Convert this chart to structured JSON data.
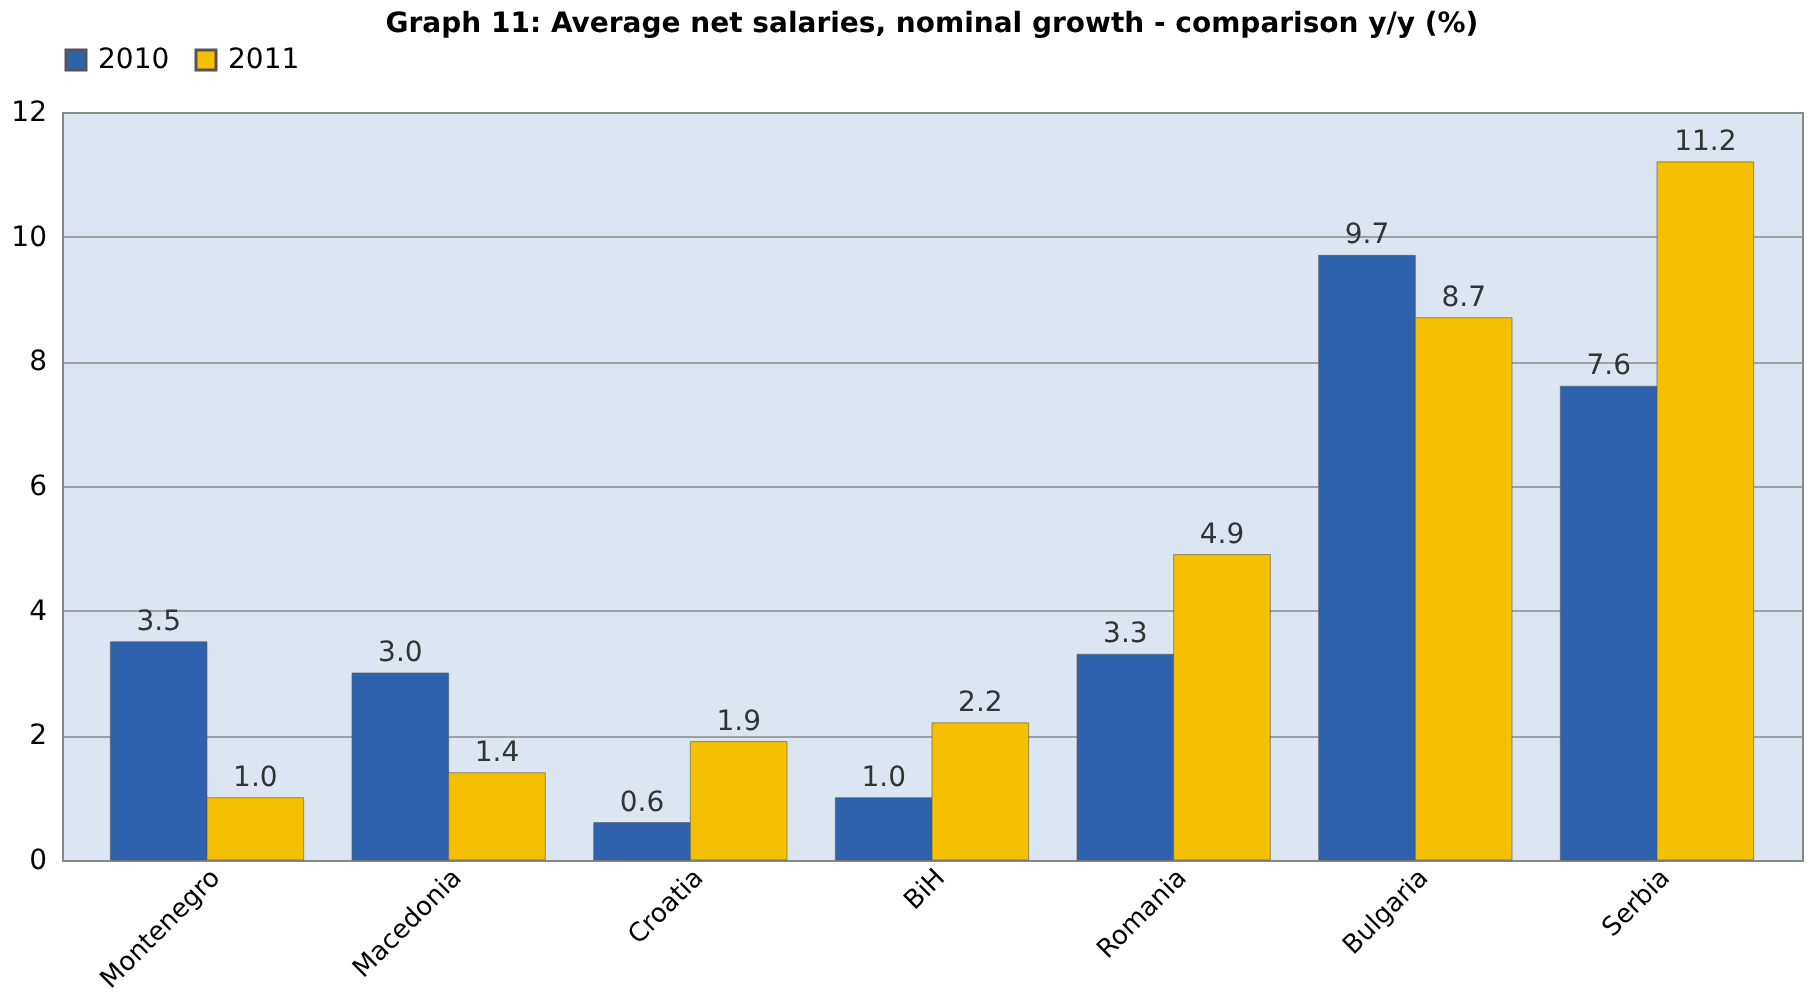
{
  "chart_data": {
    "type": "bar",
    "title": "Graph 11: Average net salaries, nominal growth - comparison y/y (%)",
    "categories": [
      "Montenegro",
      "Macedonia",
      "Croatia",
      "BiH",
      "Romania",
      "Bulgaria",
      "Serbia"
    ],
    "series": [
      {
        "name": "2010",
        "color": "#2f62ad",
        "values": [
          3.5,
          3.0,
          0.6,
          1.0,
          3.3,
          9.7,
          7.6
        ],
        "value_labels": [
          "3.5",
          "3.0",
          "0.6",
          "1.0",
          "3.3",
          "9.7",
          "7.6"
        ]
      },
      {
        "name": "2011",
        "color": "#f5c000",
        "values": [
          1.0,
          1.4,
          1.9,
          2.2,
          4.9,
          8.7,
          11.2
        ],
        "value_labels": [
          "1.0",
          "1.4",
          "1.9",
          "2.2",
          "4.9",
          "8.7",
          "11.2"
        ]
      }
    ],
    "ylim": [
      0,
      12
    ],
    "yticks": [
      0,
      2,
      4,
      6,
      8,
      10,
      12
    ],
    "grid": "y",
    "legend": "top"
  }
}
